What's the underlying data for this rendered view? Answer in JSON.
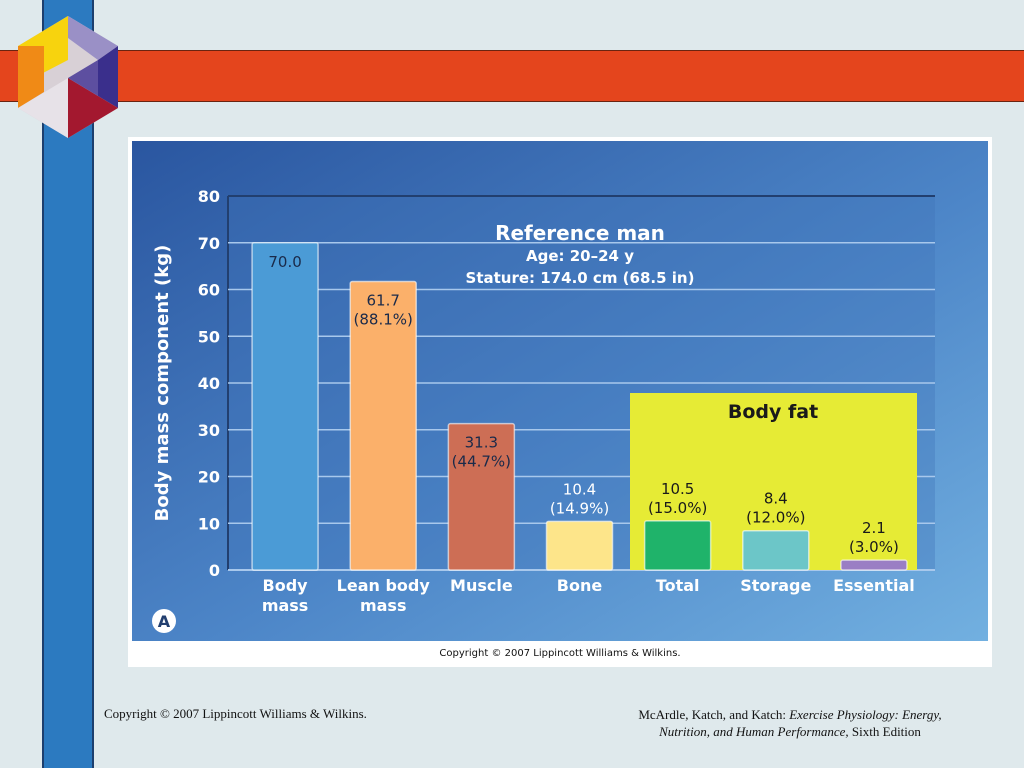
{
  "colors": {
    "panel_dark": "#2f5fa5",
    "panel_light": "#6aa8dc",
    "body_fat_box": "#e6eb35",
    "accent_orange": "#e4451d",
    "accent_blue": "#2c7ac0"
  },
  "slide": {
    "inner_copyright": "Copyright © 2007 Lippincott Williams & Wilkins.",
    "footer_left": "Copyright © 2007 Lippincott Williams & Wilkins.",
    "footer_right_prefix": "McArdle, Katch, and Katch: ",
    "footer_right_title_1": "Exercise Physiology: Energy,",
    "footer_right_title_2": "Nutrition, and Human Performance,",
    "footer_right_edition": " Sixth Edition"
  },
  "chart_data": {
    "type": "bar",
    "title": "Reference man",
    "subtitle_lines": [
      "Age: 20–24 y",
      "Stature: 174.0 cm (68.5 in)"
    ],
    "ylabel": "Body mass component (kg)",
    "ylim": [
      0,
      80
    ],
    "yticks": [
      0,
      10,
      20,
      30,
      40,
      50,
      60,
      70,
      80
    ],
    "grid": true,
    "panel_label": "A",
    "group_box_label": "Body fat",
    "bars": [
      {
        "label": [
          "Body",
          "mass"
        ],
        "value": 70.0,
        "value_label": [
          "70.0"
        ],
        "color": "#4b9bd6",
        "label_inside": true
      },
      {
        "label": [
          "Lean body",
          "mass"
        ],
        "value": 61.7,
        "value_label": [
          "61.7",
          "(88.1%)"
        ],
        "color": "#fbb06a",
        "label_inside": true
      },
      {
        "label": [
          "Muscle"
        ],
        "value": 31.3,
        "value_label": [
          "31.3",
          "(44.7%)"
        ],
        "color": "#cd6e55",
        "label_inside": true
      },
      {
        "label": [
          "Bone"
        ],
        "value": 10.4,
        "value_label": [
          "10.4",
          "(14.9%)"
        ],
        "color": "#fde58a",
        "label_inside": false
      },
      {
        "label": [
          "Total"
        ],
        "value": 10.5,
        "value_label": [
          "10.5",
          "(15.0%)"
        ],
        "color": "#1fb36a",
        "label_inside": false,
        "group": "body_fat"
      },
      {
        "label": [
          "Storage"
        ],
        "value": 8.4,
        "value_label": [
          "8.4",
          "(12.0%)"
        ],
        "color": "#6cc6c8",
        "label_inside": false,
        "group": "body_fat"
      },
      {
        "label": [
          "Essential"
        ],
        "value": 2.1,
        "value_label": [
          "2.1",
          "(3.0%)"
        ],
        "color": "#9a7ec4",
        "label_inside": false,
        "group": "body_fat"
      }
    ]
  }
}
